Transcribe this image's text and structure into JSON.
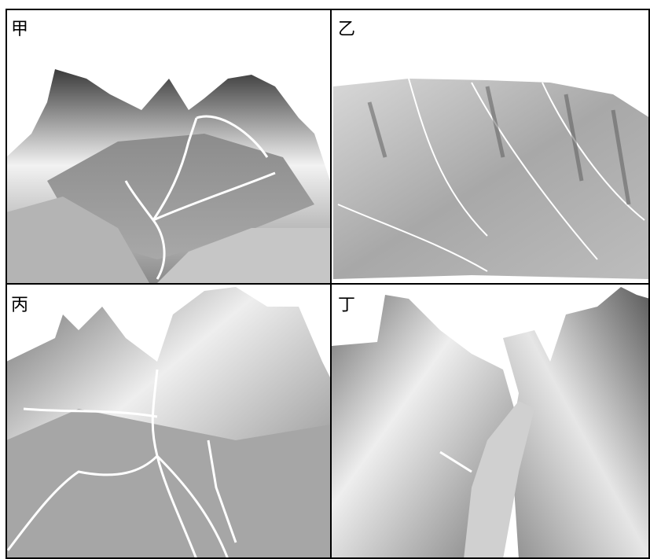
{
  "panels": [
    {
      "label": "甲"
    },
    {
      "label": "乙"
    },
    {
      "label": "丙"
    },
    {
      "label": "丁"
    }
  ]
}
